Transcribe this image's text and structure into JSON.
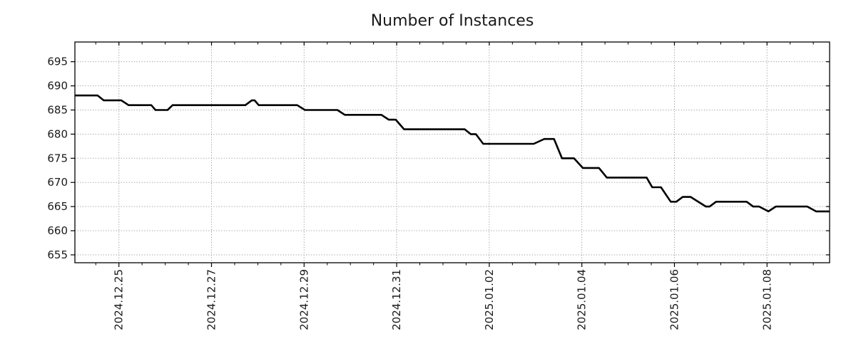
{
  "chart_data": {
    "type": "line",
    "title": "Number of Instances",
    "xlabel": "",
    "ylabel": "",
    "grid": true,
    "legend": null,
    "x_unit": "days since 2024-12-25 00:00 (read from x tick labels)",
    "xlim_days": [
      -0.951,
      15.352
    ],
    "ylim": [
      653.37,
      699.08
    ],
    "yticks": [
      655,
      660,
      665,
      670,
      675,
      680,
      685,
      690,
      695
    ],
    "xticks": [
      {
        "d": 0,
        "label": "2024.12.25"
      },
      {
        "d": 2,
        "label": "2024.12.27"
      },
      {
        "d": 4,
        "label": "2024.12.29"
      },
      {
        "d": 6,
        "label": "2024.12.31"
      },
      {
        "d": 8,
        "label": "2025.01.02"
      },
      {
        "d": 10,
        "label": "2025.01.04"
      },
      {
        "d": 12,
        "label": "2025.01.06"
      },
      {
        "d": 14,
        "label": "2025.01.08"
      }
    ],
    "x_minor_step_days": 0.5,
    "colors": {
      "line": "#000000",
      "grid": "#999999",
      "axis": "#000000",
      "text": "#1a1a1a",
      "background": "#ffffff"
    },
    "series": [
      {
        "name": "instances",
        "points": [
          [
            -0.95,
            688
          ],
          [
            -0.46,
            688
          ],
          [
            -0.33,
            687
          ],
          [
            0.05,
            687
          ],
          [
            0.21,
            686
          ],
          [
            0.7,
            686
          ],
          [
            0.79,
            685
          ],
          [
            1.05,
            685
          ],
          [
            1.16,
            686
          ],
          [
            2.73,
            686
          ],
          [
            2.87,
            687
          ],
          [
            2.93,
            687
          ],
          [
            3.02,
            686
          ],
          [
            3.85,
            686
          ],
          [
            4.02,
            685
          ],
          [
            4.72,
            685
          ],
          [
            4.88,
            684
          ],
          [
            5.67,
            684
          ],
          [
            5.83,
            683
          ],
          [
            5.98,
            683
          ],
          [
            6.16,
            681
          ],
          [
            7.47,
            681
          ],
          [
            7.6,
            680
          ],
          [
            7.71,
            680
          ],
          [
            7.87,
            678
          ],
          [
            8.96,
            678
          ],
          [
            9.19,
            679
          ],
          [
            9.4,
            679
          ],
          [
            9.57,
            675
          ],
          [
            9.83,
            675
          ],
          [
            10.02,
            673
          ],
          [
            10.37,
            673
          ],
          [
            10.54,
            671
          ],
          [
            11.4,
            671
          ],
          [
            11.52,
            669
          ],
          [
            11.71,
            669
          ],
          [
            11.92,
            666
          ],
          [
            12.04,
            666
          ],
          [
            12.18,
            667
          ],
          [
            12.35,
            667
          ],
          [
            12.68,
            665
          ],
          [
            12.76,
            665
          ],
          [
            12.9,
            666
          ],
          [
            13.56,
            666
          ],
          [
            13.7,
            665
          ],
          [
            13.83,
            665
          ],
          [
            14.03,
            664
          ],
          [
            14.19,
            665
          ],
          [
            14.87,
            665
          ],
          [
            15.06,
            664
          ],
          [
            15.35,
            664
          ]
        ]
      }
    ]
  }
}
